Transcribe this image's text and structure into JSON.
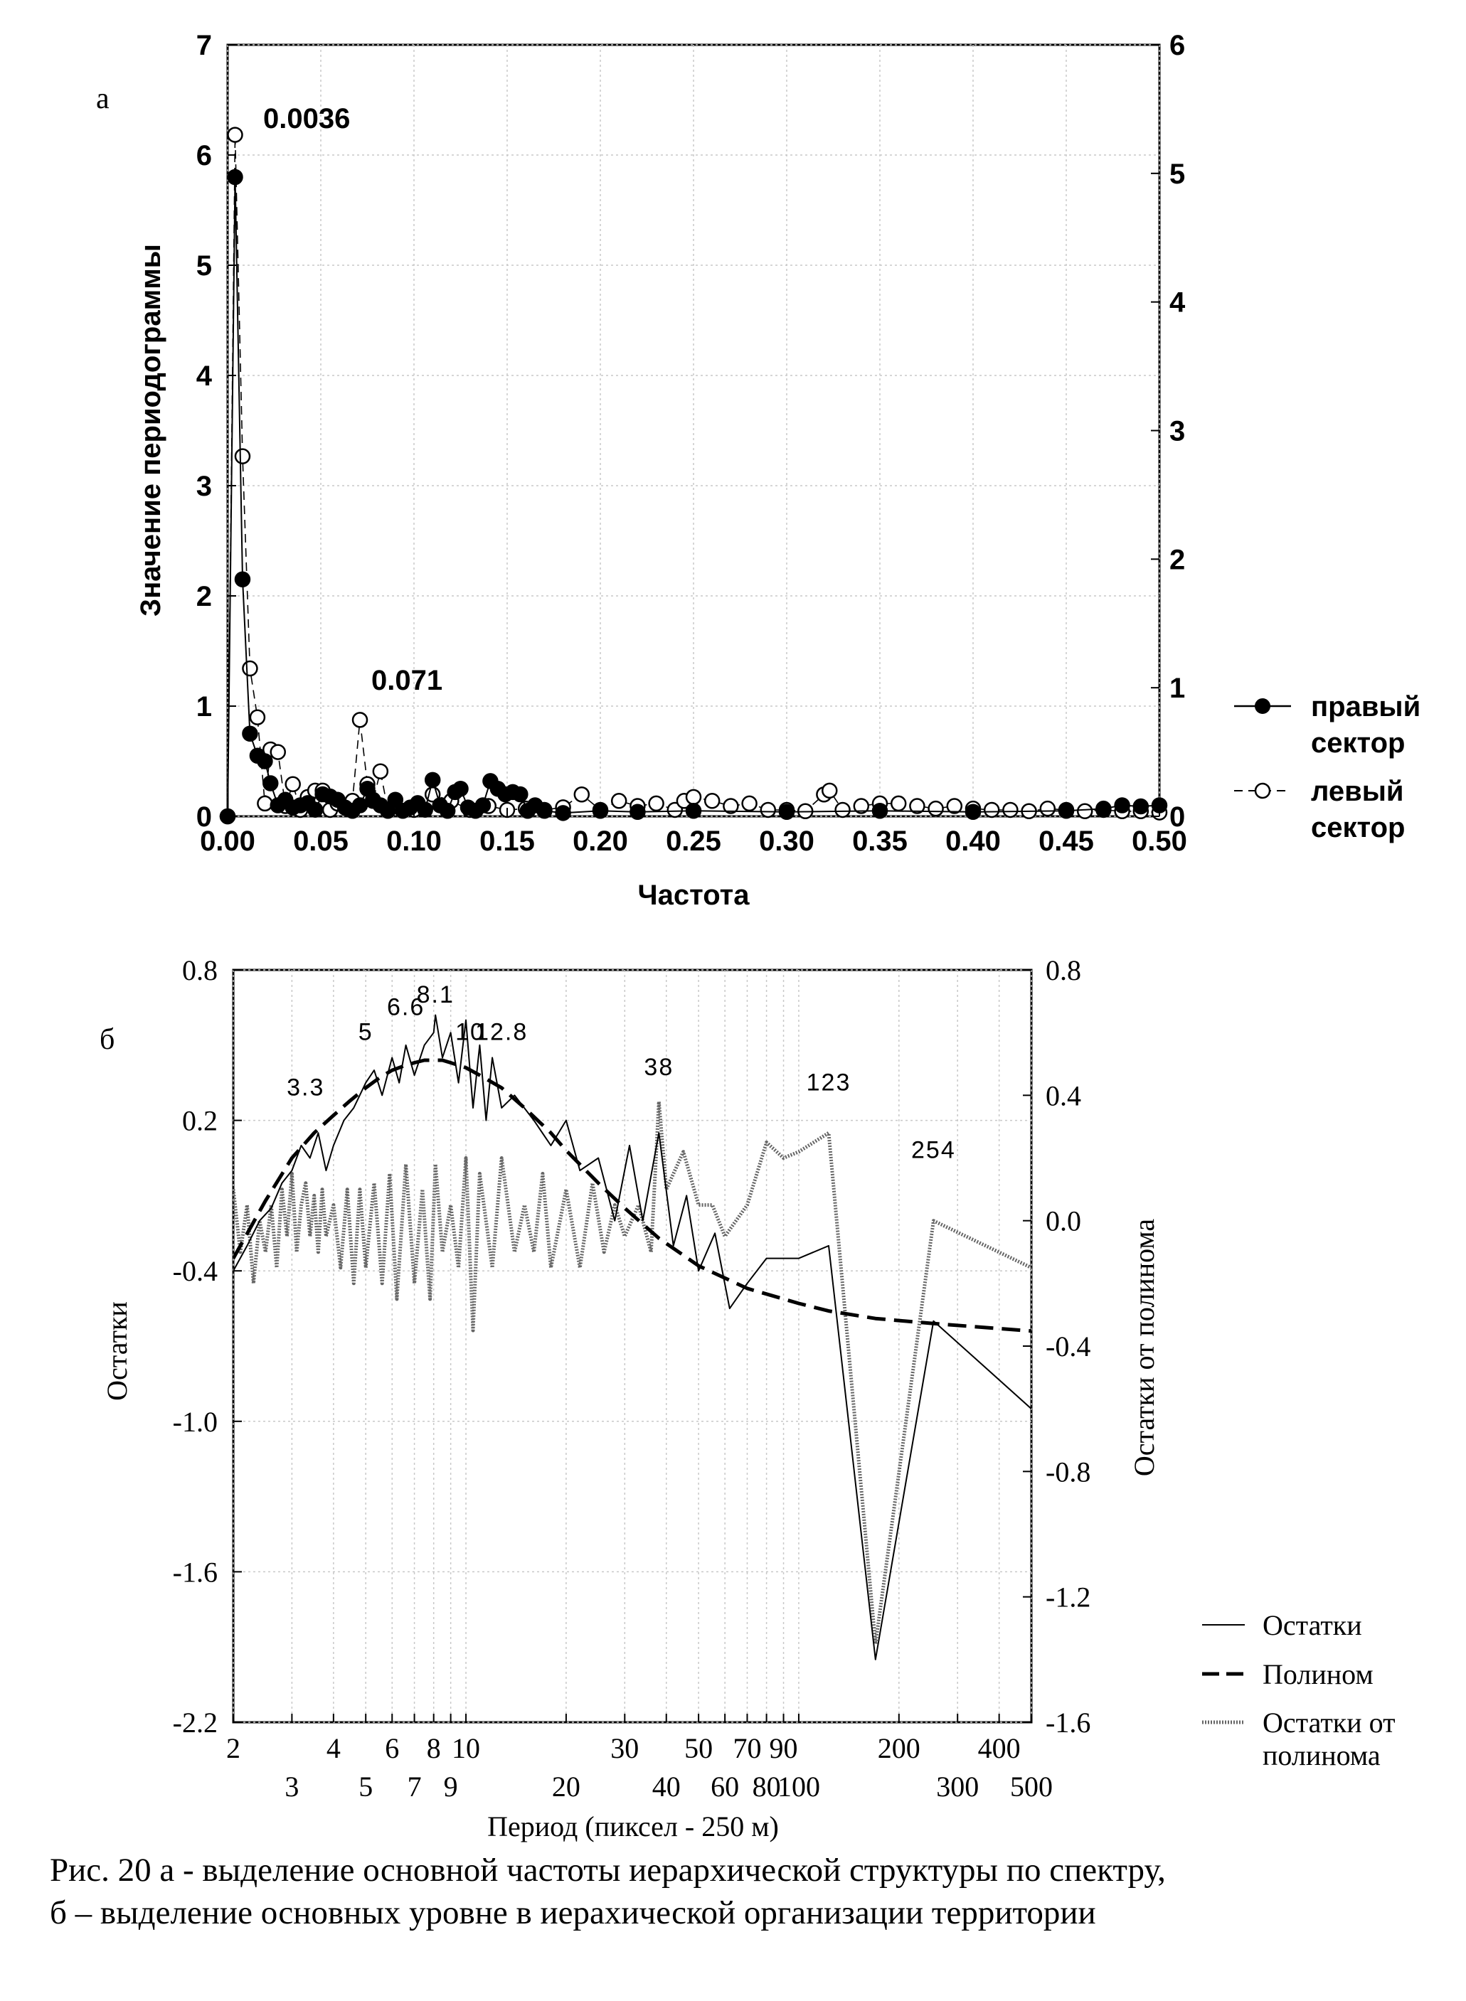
{
  "chart_data": [
    {
      "panel_label": "а",
      "type": "scatter",
      "xlabel": "Частота",
      "ylabel": "Значение периодограммы",
      "xlim": [
        0.0,
        0.5
      ],
      "ylim_left": [
        0,
        7
      ],
      "ylim_right": [
        0,
        6
      ],
      "x_ticks": [
        "0.00",
        "0.05",
        "0.10",
        "0.15",
        "0.20",
        "0.25",
        "0.30",
        "0.35",
        "0.40",
        "0.45",
        "0.50"
      ],
      "y_left_ticks": [
        "0",
        "1",
        "2",
        "3",
        "4",
        "5",
        "6",
        "7"
      ],
      "y_right_ticks": [
        "0",
        "1",
        "2",
        "3",
        "4",
        "5",
        "6"
      ],
      "grid": true,
      "legend_position": "right",
      "annotations": [
        "0.0036",
        "0.071"
      ],
      "series": [
        {
          "name": "правый сектор",
          "marker": "filled-circle",
          "line": "solid",
          "axis": "left",
          "x": [
            0.0,
            0.004,
            0.008,
            0.012,
            0.016,
            0.02,
            0.023,
            0.027,
            0.031,
            0.035,
            0.039,
            0.043,
            0.047,
            0.051,
            0.055,
            0.059,
            0.063,
            0.067,
            0.071,
            0.075,
            0.078,
            0.082,
            0.086,
            0.09,
            0.094,
            0.098,
            0.102,
            0.106,
            0.11,
            0.114,
            0.118,
            0.122,
            0.125,
            0.129,
            0.133,
            0.137,
            0.141,
            0.145,
            0.149,
            0.153,
            0.157,
            0.161,
            0.165,
            0.17,
            0.18,
            0.2,
            0.22,
            0.25,
            0.3,
            0.35,
            0.4,
            0.45,
            0.47,
            0.48,
            0.49,
            0.5
          ],
          "y": [
            0.0,
            5.8,
            2.15,
            0.75,
            0.55,
            0.5,
            0.3,
            0.1,
            0.15,
            0.08,
            0.1,
            0.12,
            0.06,
            0.2,
            0.18,
            0.15,
            0.08,
            0.05,
            0.1,
            0.25,
            0.15,
            0.1,
            0.05,
            0.15,
            0.05,
            0.08,
            0.12,
            0.06,
            0.33,
            0.1,
            0.05,
            0.22,
            0.25,
            0.08,
            0.05,
            0.1,
            0.32,
            0.25,
            0.2,
            0.22,
            0.2,
            0.05,
            0.1,
            0.05,
            0.03,
            0.05,
            0.04,
            0.05,
            0.04,
            0.05,
            0.04,
            0.05,
            0.07,
            0.1,
            0.09,
            0.1
          ]
        },
        {
          "name": "левый сектор",
          "marker": "open-circle",
          "line": "dashed",
          "axis": "right",
          "x": [
            0.0,
            0.004,
            0.008,
            0.012,
            0.016,
            0.02,
            0.023,
            0.027,
            0.031,
            0.035,
            0.039,
            0.043,
            0.047,
            0.051,
            0.055,
            0.059,
            0.063,
            0.067,
            0.071,
            0.075,
            0.078,
            0.082,
            0.086,
            0.09,
            0.1,
            0.11,
            0.12,
            0.13,
            0.14,
            0.15,
            0.16,
            0.17,
            0.18,
            0.19,
            0.2,
            0.21,
            0.22,
            0.23,
            0.24,
            0.245,
            0.25,
            0.26,
            0.27,
            0.28,
            0.29,
            0.3,
            0.31,
            0.32,
            0.323,
            0.33,
            0.34,
            0.35,
            0.36,
            0.37,
            0.38,
            0.39,
            0.4,
            0.41,
            0.42,
            0.43,
            0.44,
            0.45,
            0.46,
            0.47,
            0.48,
            0.49,
            0.5
          ],
          "y": [
            0.0,
            5.3,
            2.8,
            1.15,
            0.77,
            0.1,
            0.52,
            0.5,
            0.08,
            0.25,
            0.05,
            0.15,
            0.2,
            0.2,
            0.05,
            0.1,
            0.08,
            0.12,
            0.75,
            0.25,
            0.12,
            0.35,
            0.05,
            0.08,
            0.05,
            0.17,
            0.12,
            0.05,
            0.08,
            0.05,
            0.06,
            0.05,
            0.07,
            0.17,
            0.05,
            0.12,
            0.08,
            0.1,
            0.05,
            0.12,
            0.15,
            0.12,
            0.08,
            0.1,
            0.05,
            0.05,
            0.04,
            0.17,
            0.2,
            0.05,
            0.08,
            0.1,
            0.1,
            0.08,
            0.06,
            0.08,
            0.06,
            0.05,
            0.05,
            0.04,
            0.06,
            0.05,
            0.04,
            0.05,
            0.04,
            0.04,
            0.03
          ]
        }
      ]
    },
    {
      "panel_label": "б",
      "type": "line",
      "xlabel": "Период (пиксел - 250 м)",
      "ylabel_left": "Остатки",
      "ylabel_right": "Остатки от полинома",
      "x_scale": "log",
      "xlim": [
        2,
        500
      ],
      "ylim_left": [
        -2.2,
        0.8
      ],
      "ylim_right": [
        -1.6,
        0.8
      ],
      "x_ticks_upper": [
        "2",
        "4",
        "6",
        "8",
        "10",
        "30",
        "50",
        "70",
        "90",
        "200",
        "400"
      ],
      "x_ticks_lower": [
        "3",
        "5",
        "7",
        "9",
        "20",
        "40",
        "60",
        "80",
        "100",
        "300",
        "500"
      ],
      "y_left_ticks": [
        "0.8",
        "0.2",
        "-0.4",
        "-1.0",
        "-1.6",
        "-2.2"
      ],
      "y_right_ticks": [
        "0.8",
        "0.4",
        "0.0",
        "-0.4",
        "-0.8",
        "-1.2",
        "-1.6"
      ],
      "grid": true,
      "legend_position": "right",
      "annotations": [
        "3.3",
        "5",
        "6.6",
        "8.1",
        "10",
        "12.8",
        "38",
        "123",
        "254"
      ],
      "series": [
        {
          "name": "Остатки",
          "style": "solid-thin",
          "axis": "left",
          "x": [
            2,
            2.2,
            2.4,
            2.6,
            2.8,
            3.0,
            3.2,
            3.4,
            3.6,
            3.8,
            4.0,
            4.3,
            4.6,
            5.0,
            5.3,
            5.6,
            6.0,
            6.3,
            6.6,
            7.0,
            7.5,
            8.0,
            8.1,
            8.5,
            9.0,
            9.5,
            10,
            10.5,
            11,
            11.5,
            12,
            12.8,
            14,
            16,
            18,
            20,
            22,
            25,
            28,
            31,
            34,
            38,
            42,
            46,
            50,
            56,
            62,
            70,
            80,
            90,
            100,
            123,
            170,
            254,
            500
          ],
          "y": [
            -0.4,
            -0.3,
            -0.2,
            -0.15,
            -0.05,
            0.0,
            0.1,
            0.05,
            0.15,
            0.0,
            0.1,
            0.2,
            0.25,
            0.35,
            0.4,
            0.3,
            0.45,
            0.35,
            0.5,
            0.38,
            0.5,
            0.55,
            0.62,
            0.45,
            0.55,
            0.35,
            0.6,
            0.25,
            0.5,
            0.2,
            0.45,
            0.25,
            0.3,
            0.2,
            0.1,
            0.2,
            0.0,
            0.05,
            -0.2,
            0.1,
            -0.2,
            0.15,
            -0.3,
            -0.1,
            -0.4,
            -0.25,
            -0.55,
            -0.45,
            -0.35,
            -0.35,
            -0.35,
            -0.3,
            -1.95,
            -0.6,
            -0.95
          ]
        },
        {
          "name": "Полином",
          "style": "dashed-thick",
          "axis": "left",
          "x": [
            2,
            2.5,
            3,
            3.5,
            4,
            4.5,
            5,
            5.5,
            6,
            6.6,
            7,
            7.5,
            8,
            8.5,
            9,
            10,
            11,
            12.8,
            15,
            18,
            20,
            25,
            30,
            38,
            50,
            70,
            100,
            123,
            170,
            254,
            500
          ],
          "y": [
            -0.35,
            -0.12,
            0.05,
            0.15,
            0.22,
            0.28,
            0.33,
            0.37,
            0.4,
            0.42,
            0.43,
            0.44,
            0.44,
            0.44,
            0.43,
            0.41,
            0.38,
            0.33,
            0.25,
            0.15,
            0.08,
            -0.05,
            -0.15,
            -0.27,
            -0.38,
            -0.47,
            -0.53,
            -0.56,
            -0.59,
            -0.61,
            -0.64
          ]
        },
        {
          "name": "Остатки от полинома",
          "style": "dotted-thick",
          "axis": "right",
          "x": [
            2,
            2.1,
            2.2,
            2.3,
            2.4,
            2.5,
            2.6,
            2.7,
            2.8,
            2.9,
            3.0,
            3.1,
            3.2,
            3.3,
            3.4,
            3.5,
            3.6,
            3.7,
            3.8,
            4.0,
            4.2,
            4.4,
            4.6,
            4.8,
            5.0,
            5.3,
            5.6,
            5.9,
            6.2,
            6.6,
            7.0,
            7.4,
            7.8,
            8.1,
            8.5,
            9.0,
            9.5,
            10,
            10.5,
            11,
            12,
            12.8,
            14,
            15,
            16,
            17,
            18,
            20,
            22,
            24,
            26,
            28,
            30,
            33,
            36,
            38,
            40,
            45,
            50,
            55,
            60,
            70,
            80,
            90,
            100,
            123,
            170,
            254,
            500
          ],
          "y": [
            0.1,
            -0.1,
            0.05,
            -0.2,
            0.0,
            -0.1,
            0.05,
            -0.15,
            0.1,
            -0.05,
            0.15,
            -0.1,
            0.05,
            0.12,
            -0.05,
            0.08,
            -0.1,
            0.1,
            -0.05,
            0.05,
            -0.15,
            0.1,
            -0.2,
            0.1,
            -0.15,
            0.12,
            -0.2,
            0.15,
            -0.25,
            0.18,
            -0.2,
            0.1,
            -0.25,
            0.18,
            -0.1,
            0.05,
            -0.15,
            0.2,
            -0.35,
            0.15,
            -0.15,
            0.2,
            -0.1,
            0.05,
            -0.1,
            0.15,
            -0.15,
            0.1,
            -0.15,
            0.12,
            -0.1,
            0.05,
            -0.05,
            0.05,
            -0.1,
            0.38,
            0.1,
            0.22,
            0.05,
            0.05,
            -0.05,
            0.05,
            0.25,
            0.2,
            0.22,
            0.28,
            -1.35,
            0.0,
            -0.15
          ]
        }
      ]
    }
  ],
  "caption": {
    "line1": "Рис. 20  а - выделение основной частоты иерархической структуры по спектру,",
    "line2": "б – выделение основных уровне в иерахической организации территории"
  }
}
